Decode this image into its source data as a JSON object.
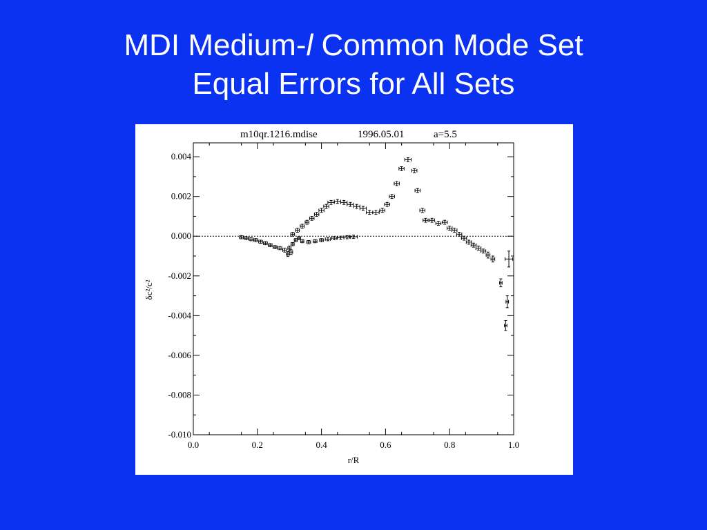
{
  "slide": {
    "title_line1_pre": "MDI Medium-",
    "title_line1_ital": "l",
    "title_line1_post": " Common Mode Set",
    "title_line2": "Equal Errors for All Sets"
  },
  "colors": {
    "background": "#0a32f0",
    "title_text": "#ffffff",
    "panel": "#ffffff",
    "ink": "#000000"
  },
  "chart_data": {
    "type": "scatter",
    "header": {
      "file": "m10qr.1216.mdise",
      "date": "1996.05.01",
      "param": "a=5.5"
    },
    "xlabel": "r/R",
    "ylabel": "δc²/c²",
    "xlim": [
      0.0,
      1.0
    ],
    "ylim": [
      -0.01,
      0.0047
    ],
    "xticks": [
      "0.0",
      "0.2",
      "0.4",
      "0.6",
      "0.8",
      "1.0"
    ],
    "yticks": [
      "0.004",
      "0.002",
      "0.000",
      "-0.002",
      "-0.004",
      "-0.006",
      "-0.008",
      "-0.010"
    ],
    "xtick_values": [
      0.0,
      0.2,
      0.4,
      0.6,
      0.8,
      1.0
    ],
    "ytick_values": [
      0.004,
      0.002,
      0.0,
      -0.002,
      -0.004,
      -0.006,
      -0.008,
      -0.01
    ],
    "zero_line": true,
    "grid": false,
    "series": [
      {
        "points": [
          {
            "x": 0.15,
            "y": -5e-05,
            "xerr": 0.006,
            "yerr": 8e-05
          },
          {
            "x": 0.165,
            "y": -0.0001,
            "xerr": 0.006,
            "yerr": 8e-05
          },
          {
            "x": 0.18,
            "y": -0.00015,
            "xerr": 0.006,
            "yerr": 8e-05
          },
          {
            "x": 0.195,
            "y": -0.0002,
            "xerr": 0.006,
            "yerr": 8e-05
          },
          {
            "x": 0.21,
            "y": -0.00028,
            "xerr": 0.006,
            "yerr": 8e-05
          },
          {
            "x": 0.225,
            "y": -0.00035,
            "xerr": 0.006,
            "yerr": 8e-05
          },
          {
            "x": 0.24,
            "y": -0.00045,
            "xerr": 0.006,
            "yerr": 8e-05
          },
          {
            "x": 0.255,
            "y": -0.00055,
            "xerr": 0.006,
            "yerr": 8e-05
          },
          {
            "x": 0.27,
            "y": -0.0006,
            "xerr": 0.006,
            "yerr": 8e-05
          },
          {
            "x": 0.285,
            "y": -0.0007,
            "xerr": 0.006,
            "yerr": 0.0001
          },
          {
            "x": 0.295,
            "y": -0.0009,
            "xerr": 0.005,
            "yerr": 0.00012
          },
          {
            "x": 0.305,
            "y": -0.0008,
            "xerr": 0.005,
            "yerr": 0.00012
          },
          {
            "x": 0.3,
            "y": -0.0006,
            "xerr": 0.005,
            "yerr": 0.0001
          },
          {
            "x": 0.31,
            "y": -0.0004,
            "xerr": 0.005,
            "yerr": 8e-05
          },
          {
            "x": 0.32,
            "y": -0.0002,
            "xerr": 0.005,
            "yerr": 8e-05
          },
          {
            "x": 0.33,
            "y": -0.0001,
            "xerr": 0.005,
            "yerr": 8e-05
          },
          {
            "x": 0.34,
            "y": -0.00025,
            "xerr": 0.005,
            "yerr": 8e-05
          },
          {
            "x": 0.36,
            "y": -0.0003,
            "xerr": 0.006,
            "yerr": 8e-05
          },
          {
            "x": 0.38,
            "y": -0.00025,
            "xerr": 0.006,
            "yerr": 8e-05
          },
          {
            "x": 0.4,
            "y": -0.0002,
            "xerr": 0.006,
            "yerr": 8e-05
          },
          {
            "x": 0.42,
            "y": -0.00015,
            "xerr": 0.008,
            "yerr": 8e-05
          },
          {
            "x": 0.44,
            "y": -0.0001,
            "xerr": 0.008,
            "yerr": 8e-05
          },
          {
            "x": 0.46,
            "y": -8e-05,
            "xerr": 0.01,
            "yerr": 8e-05
          },
          {
            "x": 0.48,
            "y": -5e-05,
            "xerr": 0.01,
            "yerr": 8e-05
          },
          {
            "x": 0.5,
            "y": -3e-05,
            "xerr": 0.012,
            "yerr": 8e-05
          },
          {
            "x": 0.31,
            "y": 0.0001,
            "xerr": 0.006,
            "yerr": 0.0001
          },
          {
            "x": 0.325,
            "y": 0.0003,
            "xerr": 0.006,
            "yerr": 0.0001
          },
          {
            "x": 0.34,
            "y": 0.0005,
            "xerr": 0.006,
            "yerr": 0.0001
          },
          {
            "x": 0.355,
            "y": 0.0007,
            "xerr": 0.006,
            "yerr": 0.0001
          },
          {
            "x": 0.37,
            "y": 0.0009,
            "xerr": 0.007,
            "yerr": 0.0001
          },
          {
            "x": 0.385,
            "y": 0.0011,
            "xerr": 0.007,
            "yerr": 0.0001
          },
          {
            "x": 0.4,
            "y": 0.0013,
            "xerr": 0.008,
            "yerr": 0.0001
          },
          {
            "x": 0.415,
            "y": 0.0015,
            "xerr": 0.008,
            "yerr": 0.0001
          },
          {
            "x": 0.43,
            "y": 0.0017,
            "xerr": 0.01,
            "yerr": 0.0001
          },
          {
            "x": 0.45,
            "y": 0.00175,
            "xerr": 0.01,
            "yerr": 0.0001
          },
          {
            "x": 0.47,
            "y": 0.0017,
            "xerr": 0.01,
            "yerr": 0.0001
          },
          {
            "x": 0.49,
            "y": 0.0016,
            "xerr": 0.01,
            "yerr": 0.0001
          },
          {
            "x": 0.51,
            "y": 0.0015,
            "xerr": 0.01,
            "yerr": 0.0001
          },
          {
            "x": 0.53,
            "y": 0.0014,
            "xerr": 0.01,
            "yerr": 0.0001
          },
          {
            "x": 0.55,
            "y": 0.0012,
            "xerr": 0.01,
            "yerr": 0.0001
          },
          {
            "x": 0.57,
            "y": 0.0012,
            "xerr": 0.01,
            "yerr": 0.0001
          },
          {
            "x": 0.59,
            "y": 0.0013,
            "xerr": 0.008,
            "yerr": 0.0001
          },
          {
            "x": 0.605,
            "y": 0.0016,
            "xerr": 0.008,
            "yerr": 0.0001
          },
          {
            "x": 0.62,
            "y": 0.002,
            "xerr": 0.008,
            "yerr": 0.0001
          },
          {
            "x": 0.635,
            "y": 0.00265,
            "xerr": 0.008,
            "yerr": 0.0001
          },
          {
            "x": 0.65,
            "y": 0.0034,
            "xerr": 0.008,
            "yerr": 0.0001
          },
          {
            "x": 0.67,
            "y": 0.00385,
            "xerr": 0.01,
            "yerr": 0.0001
          },
          {
            "x": 0.69,
            "y": 0.0033,
            "xerr": 0.008,
            "yerr": 0.0001
          },
          {
            "x": 0.7,
            "y": 0.0023,
            "xerr": 0.008,
            "yerr": 0.0001
          },
          {
            "x": 0.715,
            "y": 0.0013,
            "xerr": 0.008,
            "yerr": 0.0001
          },
          {
            "x": 0.725,
            "y": 0.0008,
            "xerr": 0.008,
            "yerr": 0.0001
          },
          {
            "x": 0.745,
            "y": 0.0008,
            "xerr": 0.008,
            "yerr": 0.0001
          },
          {
            "x": 0.765,
            "y": 0.00065,
            "xerr": 0.008,
            "yerr": 0.0001
          },
          {
            "x": 0.785,
            "y": 0.0007,
            "xerr": 0.008,
            "yerr": 0.0001
          },
          {
            "x": 0.8,
            "y": 0.0004,
            "xerr": 0.008,
            "yerr": 0.0001
          },
          {
            "x": 0.815,
            "y": 0.0003,
            "xerr": 0.008,
            "yerr": 0.0001
          },
          {
            "x": 0.83,
            "y": 0.0001,
            "xerr": 0.008,
            "yerr": 0.0001
          },
          {
            "x": 0.845,
            "y": -0.0001,
            "xerr": 0.008,
            "yerr": 0.0001
          },
          {
            "x": 0.86,
            "y": -0.0003,
            "xerr": 0.008,
            "yerr": 0.0001
          },
          {
            "x": 0.875,
            "y": -0.00045,
            "xerr": 0.008,
            "yerr": 0.0001
          },
          {
            "x": 0.89,
            "y": -0.0006,
            "xerr": 0.008,
            "yerr": 0.0001
          },
          {
            "x": 0.905,
            "y": -0.00075,
            "xerr": 0.008,
            "yerr": 0.0001
          },
          {
            "x": 0.92,
            "y": -0.00095,
            "xerr": 0.006,
            "yerr": 0.00015
          },
          {
            "x": 0.935,
            "y": -0.00115,
            "xerr": 0.006,
            "yerr": 0.00015
          },
          {
            "x": 0.96,
            "y": -0.00235,
            "xerr": 0.004,
            "yerr": 0.0002
          },
          {
            "x": 0.975,
            "y": -0.0045,
            "xerr": 0.004,
            "yerr": 0.00025
          },
          {
            "x": 0.98,
            "y": -0.0033,
            "xerr": 0.004,
            "yerr": 0.0003
          },
          {
            "x": 0.985,
            "y": -0.00115,
            "xerr": 0.012,
            "yerr": 0.0004
          }
        ]
      }
    ]
  }
}
